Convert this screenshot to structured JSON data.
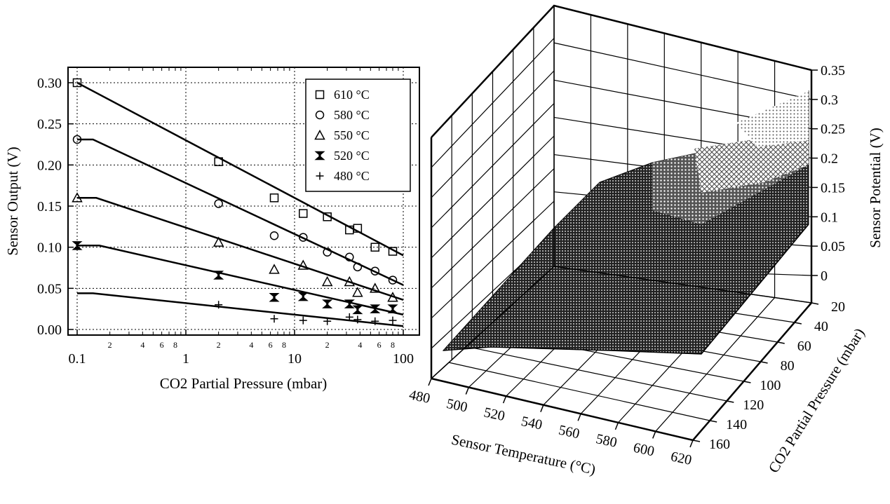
{
  "chart_data": [
    {
      "type": "scatter",
      "xlabel": "CO2 Partial Pressure (mbar)",
      "ylabel": "Sensor Output (V)",
      "xscale": "log",
      "xlim": [
        0.1,
        100
      ],
      "ylim": [
        0.0,
        0.3
      ],
      "grid": true,
      "legend_position": "top-right",
      "x_tick_labels": [
        "0.1",
        "1",
        "10",
        "100"
      ],
      "x_minor_labels": [
        "2",
        "4",
        "6",
        "8"
      ],
      "y_tick_labels": [
        "0.00",
        "0.05",
        "0.10",
        "0.15",
        "0.20",
        "0.25",
        "0.30"
      ],
      "series": [
        {
          "name": "610 °C",
          "marker": "square",
          "points": [
            [
              0.1,
              0.3
            ],
            [
              2,
              0.204
            ],
            [
              6.5,
              0.16
            ],
            [
              12,
              0.141
            ],
            [
              20,
              0.137
            ],
            [
              32,
              0.121
            ],
            [
              38,
              0.123
            ],
            [
              55,
              0.1
            ],
            [
              80,
              0.095
            ]
          ],
          "fit": [
            [
              0.1,
              0.3
            ],
            [
              100,
              0.09
            ]
          ]
        },
        {
          "name": "580 °C",
          "marker": "circle",
          "points": [
            [
              0.1,
              0.231
            ],
            [
              2,
              0.153
            ],
            [
              6.5,
              0.114
            ],
            [
              12,
              0.112
            ],
            [
              20,
              0.094
            ],
            [
              32,
              0.088
            ],
            [
              38,
              0.076
            ],
            [
              55,
              0.071
            ],
            [
              80,
              0.06
            ]
          ],
          "fit": [
            [
              0.1,
              0.231
            ],
            [
              0.14,
              0.231
            ],
            [
              100,
              0.054
            ]
          ]
        },
        {
          "name": "550 °C",
          "marker": "triangle",
          "points": [
            [
              0.1,
              0.16
            ],
            [
              2,
              0.106
            ],
            [
              6.5,
              0.073
            ],
            [
              12,
              0.078
            ],
            [
              20,
              0.058
            ],
            [
              32,
              0.058
            ],
            [
              38,
              0.045
            ],
            [
              55,
              0.05
            ],
            [
              80,
              0.039
            ]
          ],
          "fit": [
            [
              0.1,
              0.16
            ],
            [
              0.15,
              0.16
            ],
            [
              100,
              0.036
            ]
          ]
        },
        {
          "name": "520 °C",
          "marker": "hourglass",
          "points": [
            [
              0.1,
              0.102
            ],
            [
              2,
              0.066
            ],
            [
              6.5,
              0.039
            ],
            [
              12,
              0.04
            ],
            [
              20,
              0.031
            ],
            [
              32,
              0.031
            ],
            [
              38,
              0.024
            ],
            [
              55,
              0.025
            ],
            [
              80,
              0.025
            ]
          ],
          "fit": [
            [
              0.1,
              0.102
            ],
            [
              0.16,
              0.102
            ],
            [
              100,
              0.018
            ]
          ]
        },
        {
          "name": "480 °C",
          "marker": "plus",
          "points": [
            [
              2,
              0.03
            ],
            [
              6.5,
              0.013
            ],
            [
              12,
              0.011
            ],
            [
              20,
              0.01
            ],
            [
              32,
              0.015
            ],
            [
              38,
              0.012
            ],
            [
              55,
              0.01
            ],
            [
              80,
              0.011
            ]
          ],
          "fit": [
            [
              0.1,
              0.044
            ],
            [
              0.14,
              0.044
            ],
            [
              100,
              0.004
            ]
          ]
        }
      ]
    },
    {
      "type": "surface",
      "xlabel": "Sensor Temperature (°C)",
      "ylabel": "CO2 Partial Pressure (mbar)",
      "zlabel": "Sensor Potential (V)",
      "xlim": [
        480,
        620
      ],
      "ylim": [
        20,
        160
      ],
      "zlim": [
        0,
        0.35
      ],
      "x_tick_labels": [
        "480",
        "500",
        "520",
        "540",
        "560",
        "580",
        "600",
        "620"
      ],
      "y_tick_labels": [
        "20",
        "40",
        "60",
        "80",
        "100",
        "120",
        "140",
        "160"
      ],
      "z_tick_labels": [
        "0",
        "0.05",
        "0.1",
        "0.15",
        "0.2",
        "0.25",
        "0.3",
        "0.35"
      ],
      "grid": true
    }
  ]
}
